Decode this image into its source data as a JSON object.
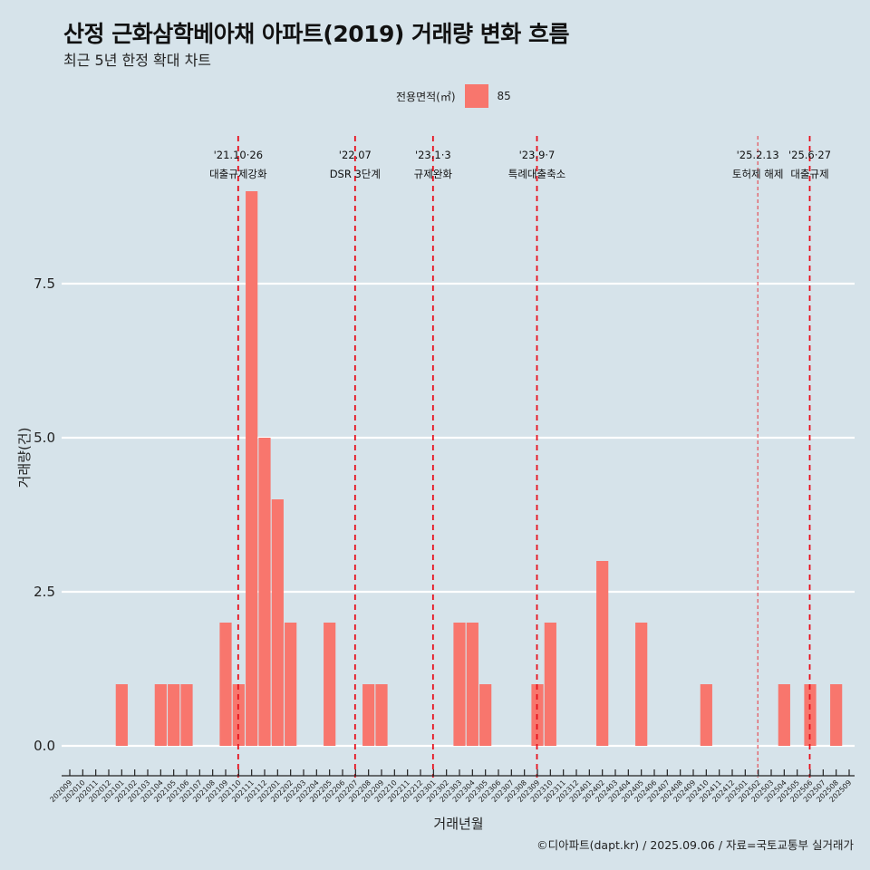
{
  "header": {
    "title": "산정 근화삼학베아채 아파트(2019) 거래량 변화 흐름",
    "subtitle": "최근 5년 한정 확대 차트"
  },
  "legend": {
    "title": "전용면적(㎡)",
    "entries": [
      {
        "label": "85",
        "color": "#f8766d"
      }
    ]
  },
  "caption": "©디아파트(dapt.kr) / 2025.09.06 / 자료=국토교통부 실거래가",
  "chart_data": {
    "type": "bar",
    "title": "산정 근화삼학베아채 아파트(2019) 거래량 변화 흐름",
    "subtitle": "최근 5년 한정 확대 차트",
    "xlabel": "거래년월",
    "ylabel": "거래량(건)",
    "ylim": [
      -0.4,
      9.6
    ],
    "yticks": [
      "0.0",
      "2.5",
      "5.0",
      "7.5"
    ],
    "ytick_values": [
      0,
      2.5,
      5,
      7.5
    ],
    "grid": true,
    "legend_position": "top",
    "bar_color": "#f8766d",
    "categories": [
      "202009",
      "202010",
      "202011",
      "202012",
      "202101",
      "202102",
      "202103",
      "202104",
      "202105",
      "202106",
      "202107",
      "202108",
      "202109",
      "202110",
      "202111",
      "202112",
      "202201",
      "202202",
      "202203",
      "202204",
      "202205",
      "202206",
      "202207",
      "202208",
      "202209",
      "202210",
      "202211",
      "202212",
      "202301",
      "202302",
      "202303",
      "202304",
      "202305",
      "202306",
      "202307",
      "202308",
      "202309",
      "202310",
      "202311",
      "202312",
      "202401",
      "202402",
      "202403",
      "202404",
      "202405",
      "202406",
      "202407",
      "202408",
      "202409",
      "202410",
      "202411",
      "202412",
      "202501",
      "202502",
      "202503",
      "202504",
      "202505",
      "202506",
      "202507",
      "202508",
      "202509"
    ],
    "series": [
      {
        "name": "85",
        "values": [
          0,
          0,
          0,
          0,
          1,
          0,
          0,
          1,
          1,
          1,
          0,
          0,
          2,
          1,
          9,
          5,
          4,
          2,
          0,
          0,
          2,
          0,
          0,
          1,
          1,
          0,
          0,
          0,
          0,
          0,
          2,
          2,
          1,
          0,
          0,
          0,
          1,
          2,
          0,
          0,
          0,
          3,
          0,
          0,
          2,
          0,
          0,
          0,
          0,
          1,
          0,
          0,
          0,
          0,
          0,
          1,
          0,
          1,
          0,
          1,
          0
        ]
      }
    ],
    "annotations": [
      {
        "month": "202110",
        "date": "'21.10·26",
        "label": "대출규제강화",
        "style": "dashed"
      },
      {
        "month": "202207",
        "date": "'22.07",
        "label": "DSR 3단계",
        "style": "dashed"
      },
      {
        "month": "202301",
        "date": "'23.1·3",
        "label": "규제완화",
        "style": "dashed"
      },
      {
        "month": "202309",
        "date": "'23.9·7",
        "label": "특례대출축소",
        "style": "dashed"
      },
      {
        "month": "202502",
        "date": "'25.2.13",
        "label": "토허제 해제",
        "style": "thin"
      },
      {
        "month": "202506",
        "date": "'25.6·27",
        "label": "대출규제",
        "style": "dashed"
      }
    ]
  }
}
